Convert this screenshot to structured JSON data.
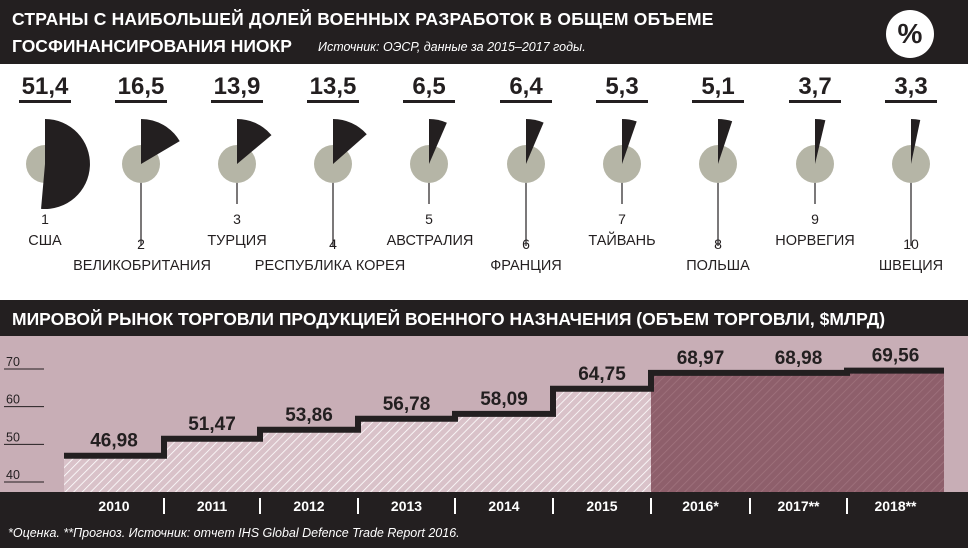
{
  "header": {
    "title_line1": "СТРАНЫ С НАИБОЛЬШЕЙ ДОЛЕЙ ВОЕННЫХ РАЗРАБОТОК В ОБЩЕМ ОБЪЕМЕ",
    "title_line2": "ГОСФИНАНСИРОВАНИЯ НИОКР",
    "source": "Источник: ОЭСР, данные за 2015–2017 годы.",
    "percent_symbol": "%"
  },
  "section2": {
    "title": "МИРОВОЙ РЫНОК ТОРГОВЛИ ПРОДУКЦИЕЙ ВОЕННОГО НАЗНАЧЕНИЯ (ОБЪЕМ ТОРГОВЛИ, $МЛРД)"
  },
  "footer": {
    "note": "*Оценка. **Прогноз.  Источник: отчет IHS Global Defence Trade Report 2016."
  },
  "colors": {
    "dark": "#231f20",
    "circle_gray": "#b5b5a6",
    "plot_bg": "#c8aeb6",
    "line_fill": "#ffffff",
    "forecast_fill": "#8e5f6b"
  },
  "chart_data": [
    {
      "type": "pie",
      "value_unit": "%",
      "items": [
        {
          "rank": "1",
          "country": "США",
          "value": 51.4,
          "value_label": "51,4"
        },
        {
          "rank": "2",
          "country": "ВЕЛИКОБРИТАНИЯ",
          "value": 16.5,
          "value_label": "16,5"
        },
        {
          "rank": "3",
          "country": "ТУРЦИЯ",
          "value": 13.9,
          "value_label": "13,9"
        },
        {
          "rank": "4",
          "country": "РЕСПУБЛИКА КОРЕЯ",
          "value": 13.5,
          "value_label": "13,5"
        },
        {
          "rank": "5",
          "country": "АВСТРАЛИЯ",
          "value": 6.5,
          "value_label": "6,5"
        },
        {
          "rank": "6",
          "country": "ФРАНЦИЯ",
          "value": 6.4,
          "value_label": "6,4"
        },
        {
          "rank": "7",
          "country": "ТАЙВАНЬ",
          "value": 5.3,
          "value_label": "5,3"
        },
        {
          "rank": "8",
          "country": "ПОЛЬША",
          "value": 5.1,
          "value_label": "5,1"
        },
        {
          "rank": "9",
          "country": "НОРВЕГИЯ",
          "value": 3.7,
          "value_label": "3,7"
        },
        {
          "rank": "10",
          "country": "ШВЕЦИЯ",
          "value": 3.3,
          "value_label": "3,3"
        }
      ]
    },
    {
      "type": "area",
      "categories": [
        "2010",
        "2011",
        "2012",
        "2013",
        "2014",
        "2015",
        "2016*",
        "2017**",
        "2018**"
      ],
      "values": [
        46.98,
        51.47,
        53.86,
        56.78,
        58.09,
        64.75,
        68.97,
        68.98,
        69.56
      ],
      "value_labels": [
        "46,98",
        "51,47",
        "53,86",
        "56,78",
        "58,09",
        "64,75",
        "68,97",
        "68,98",
        "69,56"
      ],
      "yticks": [
        "40",
        "50",
        "60",
        "70"
      ],
      "ylim": [
        40,
        70
      ],
      "estimate_from_index": 6
    }
  ]
}
